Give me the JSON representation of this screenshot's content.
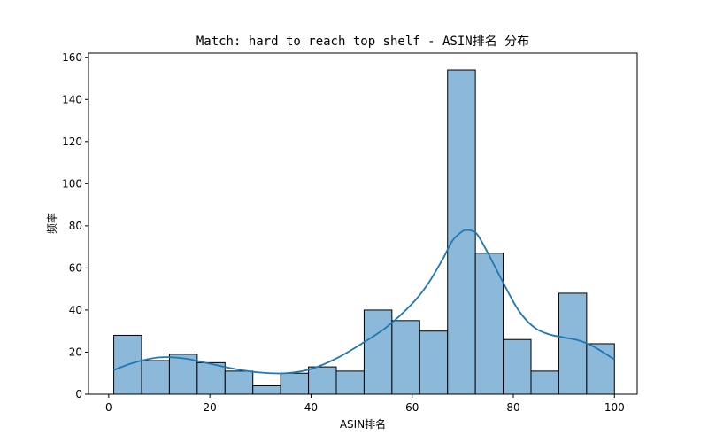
{
  "chart_data": {
    "type": "bar",
    "subtype": "histogram",
    "title": "Match: hard to reach top shelf - ASIN排名 分布",
    "xlabel": "ASIN排名",
    "ylabel": "频率",
    "xlim": [
      -4,
      104.5
    ],
    "ylim": [
      0,
      162
    ],
    "xticks": [
      0,
      20,
      40,
      60,
      80,
      100
    ],
    "yticks": [
      0,
      20,
      40,
      60,
      80,
      100,
      120,
      140,
      160
    ],
    "bins": [
      {
        "start": 1.0,
        "end": 6.5,
        "count": 28
      },
      {
        "start": 6.5,
        "end": 12.0,
        "count": 16
      },
      {
        "start": 12.0,
        "end": 17.5,
        "count": 19
      },
      {
        "start": 17.5,
        "end": 23.0,
        "count": 15
      },
      {
        "start": 23.0,
        "end": 28.5,
        "count": 11
      },
      {
        "start": 28.5,
        "end": 34.0,
        "count": 4
      },
      {
        "start": 34.0,
        "end": 39.5,
        "count": 10
      },
      {
        "start": 39.5,
        "end": 45.0,
        "count": 13
      },
      {
        "start": 45.0,
        "end": 50.5,
        "count": 11
      },
      {
        "start": 50.5,
        "end": 56.0,
        "count": 40
      },
      {
        "start": 56.0,
        "end": 61.5,
        "count": 35
      },
      {
        "start": 61.5,
        "end": 67.0,
        "count": 30
      },
      {
        "start": 67.0,
        "end": 72.5,
        "count": 154
      },
      {
        "start": 72.5,
        "end": 78.0,
        "count": 67
      },
      {
        "start": 78.0,
        "end": 83.5,
        "count": 26
      },
      {
        "start": 83.5,
        "end": 89.0,
        "count": 11
      },
      {
        "start": 89.0,
        "end": 94.5,
        "count": 48
      },
      {
        "start": 94.5,
        "end": 100.0,
        "count": 24
      }
    ],
    "kde": {
      "x": [
        1,
        5,
        10,
        15,
        20,
        25,
        30,
        35,
        40,
        45,
        50,
        55,
        60,
        63,
        66,
        68,
        70,
        71,
        72,
        73,
        75,
        78,
        81,
        84,
        87,
        90,
        93,
        96,
        100
      ],
      "y": [
        11.5,
        15,
        17.5,
        17,
        14.5,
        12,
        10.3,
        10,
        12,
        17,
        24,
        32,
        43,
        52,
        64,
        73,
        77.5,
        78,
        77.5,
        75.5,
        67,
        53,
        40,
        32,
        28.5,
        27,
        25.5,
        22.5,
        16.5
      ]
    },
    "grid": false,
    "legend": false,
    "colors": {
      "bar_fill": "#8cb9d9",
      "bar_edge": "#000000",
      "kde_line": "#1f77b4",
      "axes": "#000000",
      "background": "#ffffff"
    }
  }
}
